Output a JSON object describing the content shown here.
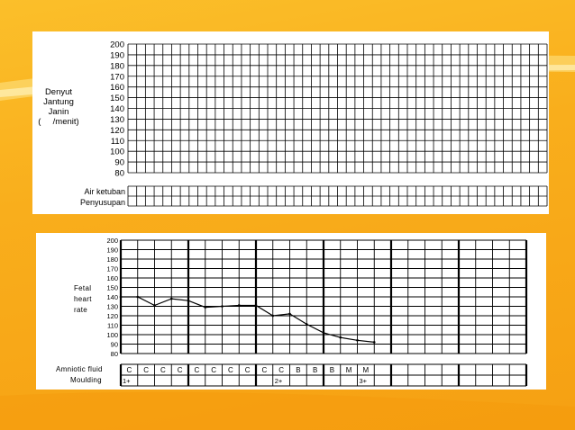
{
  "top_chart": {
    "ylabel_lines": [
      "Denyut",
      "Jantung",
      "Janin",
      "(     /menit)"
    ],
    "row_labels": [
      "Air ketuban",
      "Penyusupan"
    ]
  },
  "bottom_chart": {
    "ylabel_lines": [
      "Fetal",
      "heart",
      "rate"
    ],
    "row_labels": [
      "Amniotic fluid",
      "Moulding"
    ]
  },
  "chart_data": [
    {
      "type": "line",
      "title": "",
      "ylabel": "Denyut Jantung Janin (/menit)",
      "ylim": [
        80,
        200
      ],
      "yticks": [
        200,
        190,
        180,
        170,
        160,
        150,
        140,
        130,
        120,
        110,
        100,
        90,
        80
      ],
      "columns": 48,
      "series": [],
      "rows": [
        "Air ketuban",
        "Penyusupan"
      ],
      "grid": true
    },
    {
      "type": "line",
      "title": "",
      "ylabel": "Fetal heart rate",
      "ylim": [
        80,
        200
      ],
      "yticks": [
        200,
        190,
        180,
        170,
        160,
        150,
        140,
        130,
        120,
        110,
        100,
        90,
        80
      ],
      "columns": 24,
      "grid": true,
      "series": [
        {
          "x": [
            0,
            1,
            2,
            3,
            4,
            5,
            6,
            7,
            8,
            9,
            10,
            11,
            12,
            13,
            14,
            15
          ],
          "values": [
            140,
            140,
            131,
            138,
            136,
            129,
            130,
            131,
            131,
            120,
            122,
            111,
            102,
            97,
            94,
            92
          ]
        }
      ],
      "amniotic_fluid": [
        "C",
        "C",
        "C",
        "C",
        "C",
        "C",
        "C",
        "C",
        "C",
        "C",
        "B",
        "B",
        "B",
        "M",
        "M",
        "",
        "",
        "",
        "",
        "",
        "",
        "",
        "",
        ""
      ],
      "moulding": [
        "1+",
        "",
        "",
        "",
        "",
        "",
        "",
        "",
        "",
        "2+",
        "",
        "",
        "",
        "",
        "3+",
        "",
        "",
        "",
        "",
        "",
        "",
        "",
        "",
        ""
      ]
    }
  ],
  "colors": {
    "background": "#f9ae1c",
    "panel": "#ffffff",
    "grid": "#000000",
    "curve": "#000000"
  }
}
